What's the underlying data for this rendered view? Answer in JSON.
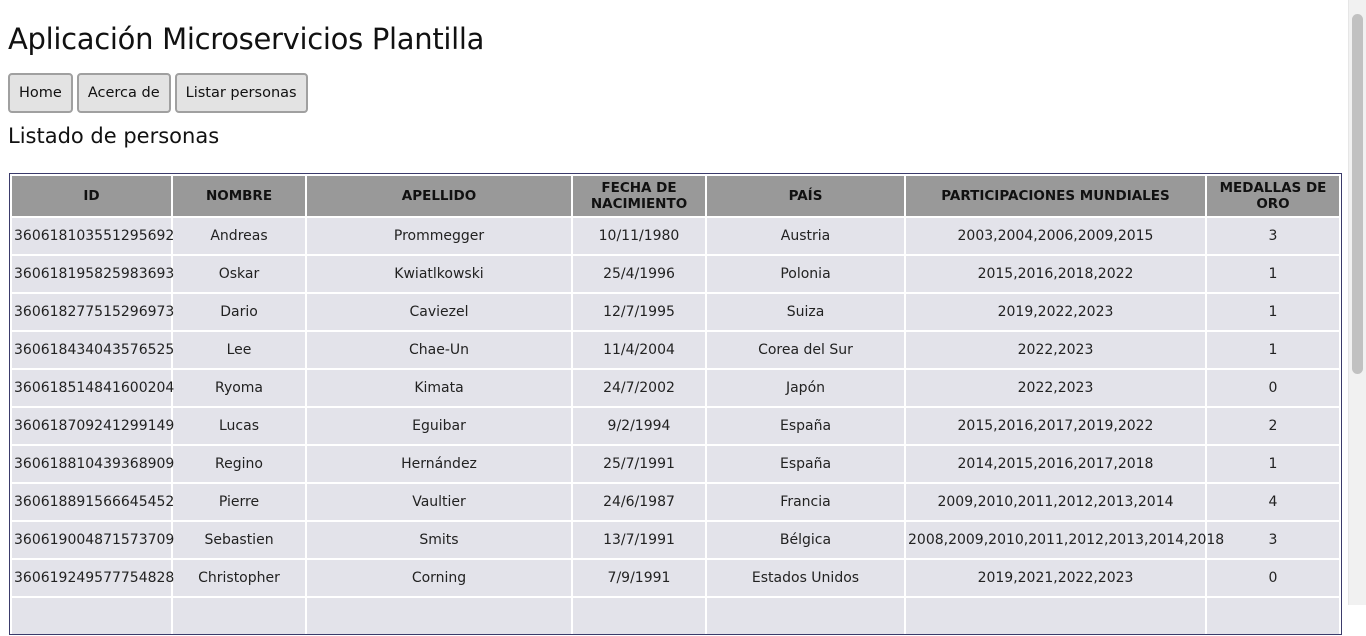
{
  "header": {
    "title": "Aplicación Microservicios Plantilla"
  },
  "nav": [
    {
      "label": "Home"
    },
    {
      "label": "Acerca de"
    },
    {
      "label": "Listar personas"
    }
  ],
  "section_title": "Listado de personas",
  "table": {
    "headers": [
      "ID",
      "NOMBRE",
      "APELLIDO",
      "FECHA DE NACIMIENTO",
      "PAÍS",
      "PARTICIPACIONES MUNDIALES",
      "MEDALLAS DE ORO"
    ],
    "rows": [
      [
        "360618103551295692",
        "Andreas",
        "Prommegger",
        "10/11/1980",
        "Austria",
        "2003,2004,2006,2009,2015",
        "3"
      ],
      [
        "360618195825983693",
        "Oskar",
        "Kwiatlkowski",
        "25/4/1996",
        "Polonia",
        "2015,2016,2018,2022",
        "1"
      ],
      [
        "360618277515296973",
        "Dario",
        "Caviezel",
        "12/7/1995",
        "Suiza",
        "2019,2022,2023",
        "1"
      ],
      [
        "360618434043576525",
        "Lee",
        "Chae-Un",
        "11/4/2004",
        "Corea del Sur",
        "2022,2023",
        "1"
      ],
      [
        "360618514841600204",
        "Ryoma",
        "Kimata",
        "24/7/2002",
        "Japón",
        "2022,2023",
        "0"
      ],
      [
        "360618709241299149",
        "Lucas",
        "Eguibar",
        "9/2/1994",
        "España",
        "2015,2016,2017,2019,2022",
        "2"
      ],
      [
        "360618810439368909",
        "Regino",
        "Hernández",
        "25/7/1991",
        "España",
        "2014,2015,2016,2017,2018",
        "1"
      ],
      [
        "360618891566645452",
        "Pierre",
        "Vaultier",
        "24/6/1987",
        "Francia",
        "2009,2010,2011,2012,2013,2014",
        "4"
      ],
      [
        "360619004871573709",
        "Sebastien",
        "Smits",
        "13/7/1991",
        "Bélgica",
        "2008,2009,2010,2011,2012,2013,2014,2018",
        "3"
      ],
      [
        "360619249577754828",
        "Christopher",
        "Corning",
        "7/9/1991",
        "Estados Unidos",
        "2019,2021,2022,2023",
        "0"
      ],
      [
        "",
        "",
        "",
        "",
        "",
        "",
        ""
      ]
    ]
  },
  "colors": {
    "header_bg": "#999999",
    "row_bg": "#e3e3ea",
    "border": "#3b3b6b"
  }
}
